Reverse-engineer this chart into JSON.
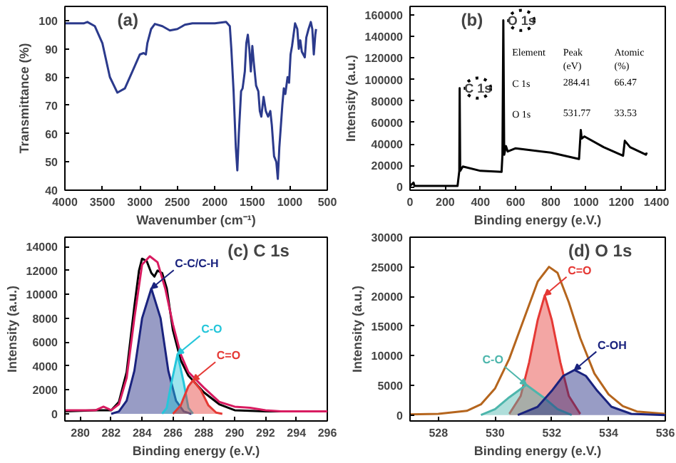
{
  "chart_data": [
    {
      "type": "line",
      "title": "(a)",
      "xlabel": "Wavenumber (cm⁻¹)",
      "ylabel": "Transmittance (%)",
      "xlim": [
        4000,
        500
      ],
      "ylim": [
        40,
        105
      ],
      "xticks": [
        4000,
        3500,
        3000,
        2500,
        2000,
        1500,
        1000,
        500
      ],
      "yticks": [
        40,
        50,
        60,
        70,
        80,
        90,
        100
      ],
      "grid": false,
      "series": [
        {
          "color": "#2b3a8c",
          "x": [
            4000,
            3750,
            3700,
            3600,
            3500,
            3400,
            3300,
            3200,
            3100,
            3000,
            2950,
            2920,
            2900,
            2850,
            2800,
            2700,
            2600,
            2500,
            2400,
            2300,
            2000,
            1850,
            1800,
            1780,
            1750,
            1720,
            1700,
            1680,
            1650,
            1630,
            1600,
            1580,
            1560,
            1540,
            1520,
            1500,
            1480,
            1450,
            1420,
            1400,
            1380,
            1350,
            1320,
            1290,
            1260,
            1240,
            1210,
            1180,
            1160,
            1140,
            1100,
            1080,
            1060,
            1030,
            1010,
            990,
            970,
            950,
            930,
            900,
            880,
            860,
            840,
            820,
            800,
            780,
            750,
            720,
            700,
            680,
            660,
            650
          ],
          "values": [
            99,
            99,
            99.5,
            98,
            92,
            80,
            74.5,
            76,
            82,
            88,
            88.5,
            88,
            92,
            97,
            98.8,
            98,
            96.5,
            97,
            98.5,
            99,
            99,
            99.5,
            98,
            90,
            75,
            55,
            47,
            60,
            75,
            76,
            82,
            92,
            95,
            90,
            82,
            91,
            85,
            77,
            75,
            68,
            66,
            73,
            68,
            66,
            68,
            63,
            52,
            50,
            44,
            55,
            70,
            76,
            74,
            80,
            78,
            88,
            91,
            95,
            99,
            97,
            90,
            93,
            89,
            88,
            87,
            94,
            97,
            99.5,
            97,
            88,
            95,
            97
          ]
        }
      ]
    },
    {
      "type": "line",
      "title": "(b)",
      "xlabel": "Binding energy (e.V.)",
      "ylabel": "Intensity (a.u.)",
      "xlim": [
        0,
        1450
      ],
      "ylim": [
        -3000,
        168000
      ],
      "xticks": [
        0,
        200,
        400,
        600,
        800,
        1000,
        1200,
        1400
      ],
      "yticks": [
        0,
        20000,
        40000,
        60000,
        80000,
        100000,
        120000,
        140000,
        160000
      ],
      "grid": false,
      "annotations": [
        {
          "text": "C 1s",
          "x": 284,
          "y": 92000
        },
        {
          "text": "O 1s",
          "x": 531,
          "y": 155000
        },
        "Element",
        "Peak\n(eV)",
        "Atomic\n(%)",
        "C 1s",
        "284.41",
        "66.47",
        "O 1s",
        "531.77",
        "33.53"
      ],
      "series": [
        {
          "color": "#000000",
          "x": [
            0,
            20,
            25,
            100,
            270,
            280,
            282,
            285,
            300,
            400,
            520,
            525,
            530,
            535,
            545,
            555,
            600,
            800,
            960,
            970,
            975,
            990,
            1100,
            1210,
            1220,
            1250,
            1340,
            1345
          ],
          "values": [
            1000,
            4000,
            1000,
            1000,
            1000,
            15000,
            92000,
            15000,
            19000,
            15000,
            14000,
            30000,
            155000,
            30000,
            38000,
            33000,
            36000,
            32000,
            26000,
            53000,
            45000,
            47000,
            37000,
            29000,
            43000,
            37000,
            30000,
            32000
          ]
        }
      ]
    },
    {
      "type": "line",
      "title": "(c) C 1s",
      "xlabel": "Binding energy (e.V.)",
      "ylabel": "Intensity (a.u.)",
      "xlim": [
        279,
        296
      ],
      "ylim": [
        -600,
        14800
      ],
      "xticks": [
        280,
        282,
        284,
        286,
        288,
        290,
        292,
        294,
        296
      ],
      "yticks": [
        0,
        2000,
        4000,
        6000,
        8000,
        10000,
        12000,
        14000
      ],
      "grid": false,
      "annotations": [
        {
          "text": "C-C/C-H",
          "x": 284.6,
          "y": 10500
        },
        {
          "text": "C-O",
          "x": 286.3,
          "y": 5000
        },
        {
          "text": "C=O",
          "x": 287.3,
          "y": 2800
        }
      ],
      "series": [
        {
          "color": "#000000",
          "x": [
            279,
            281,
            282,
            282.5,
            283,
            283.5,
            283.8,
            284,
            284.3,
            284.6,
            284.8,
            285,
            285.3,
            285.6,
            286,
            286.5,
            287,
            288,
            289,
            290,
            292,
            296
          ],
          "values": [
            200,
            300,
            300,
            1000,
            3500,
            9000,
            12000,
            13000,
            12800,
            11800,
            11500,
            12000,
            11800,
            10500,
            7000,
            4500,
            3200,
            1800,
            800,
            300,
            200,
            200
          ]
        },
        {
          "color": "#d81b60",
          "x": [
            279,
            281,
            281.5,
            282,
            282.5,
            283,
            283.5,
            284,
            284.5,
            285,
            285.5,
            286,
            286.5,
            287,
            288,
            289,
            290,
            291,
            292,
            293,
            296
          ],
          "values": [
            300,
            300,
            600,
            300,
            800,
            3000,
            8000,
            12500,
            13200,
            12700,
            10500,
            7500,
            5000,
            3500,
            2200,
            1000,
            600,
            500,
            300,
            200,
            200
          ]
        },
        {
          "type": "area",
          "color": "#1a237e",
          "x": [
            282,
            282.5,
            283,
            283.5,
            284,
            284.6,
            285.2,
            285.7,
            286.2,
            286.7,
            287.2
          ],
          "values": [
            0,
            200,
            1100,
            3600,
            8000,
            10500,
            8000,
            3600,
            1100,
            200,
            0
          ]
        },
        {
          "type": "area",
          "color": "#26c6da",
          "x": [
            285.3,
            285.6,
            285.9,
            286.3,
            286.7,
            287,
            287.3
          ],
          "values": [
            0,
            500,
            2600,
            5000,
            2600,
            500,
            0
          ]
        },
        {
          "type": "area",
          "color": "#e53935",
          "x": [
            286,
            286.5,
            287,
            287.3,
            287.8,
            288.3,
            288.8,
            289.2
          ],
          "values": [
            0,
            700,
            2300,
            2800,
            2000,
            700,
            100,
            0
          ]
        }
      ]
    },
    {
      "type": "line",
      "title": "(d) O 1s",
      "xlabel": "Binding energy (e.V.)",
      "ylabel": "Intensity (a.u.)",
      "xlim": [
        527,
        536
      ],
      "ylim": [
        -1000,
        30000
      ],
      "xticks": [
        528,
        530,
        532,
        534,
        536
      ],
      "yticks": [
        0,
        5000,
        10000,
        15000,
        20000,
        25000,
        30000
      ],
      "grid": false,
      "annotations": [
        {
          "text": "C=O",
          "x": 531.75,
          "y": 20200
        },
        {
          "text": "C-OH",
          "x": 532.8,
          "y": 7600
        },
        {
          "text": "C-O",
          "x": 531.1,
          "y": 5100
        }
      ],
      "series": [
        {
          "color": "#b5651d",
          "x": [
            527,
            528,
            529,
            529.5,
            530,
            530.5,
            531,
            531.5,
            531.9,
            532.2,
            532.6,
            533,
            533.5,
            534,
            534.5,
            535,
            536
          ],
          "values": [
            100,
            200,
            700,
            1800,
            4500,
            9500,
            16000,
            22500,
            25000,
            24000,
            19000,
            13000,
            7000,
            3500,
            1500,
            600,
            200
          ]
        },
        {
          "type": "area",
          "color": "#e53935",
          "x": [
            530.5,
            530.9,
            531.2,
            531.5,
            531.75,
            532,
            532.3,
            532.6,
            533
          ],
          "values": [
            200,
            3200,
            8900,
            16000,
            20200,
            16000,
            8900,
            3200,
            200
          ]
        },
        {
          "type": "area",
          "color": "#4db6ac",
          "x": [
            529.5,
            530,
            530.5,
            531.1,
            531.7,
            532.2,
            532.7
          ],
          "values": [
            0,
            1000,
            3000,
            5100,
            3000,
            1000,
            0
          ]
        },
        {
          "type": "area",
          "color": "#1a237e",
          "x": [
            530.8,
            531.5,
            532,
            532.4,
            532.8,
            533.2,
            533.6,
            534.1,
            534.8,
            536
          ],
          "values": [
            0,
            1400,
            4100,
            6600,
            7600,
            6600,
            4100,
            1400,
            200,
            0
          ]
        }
      ]
    }
  ]
}
